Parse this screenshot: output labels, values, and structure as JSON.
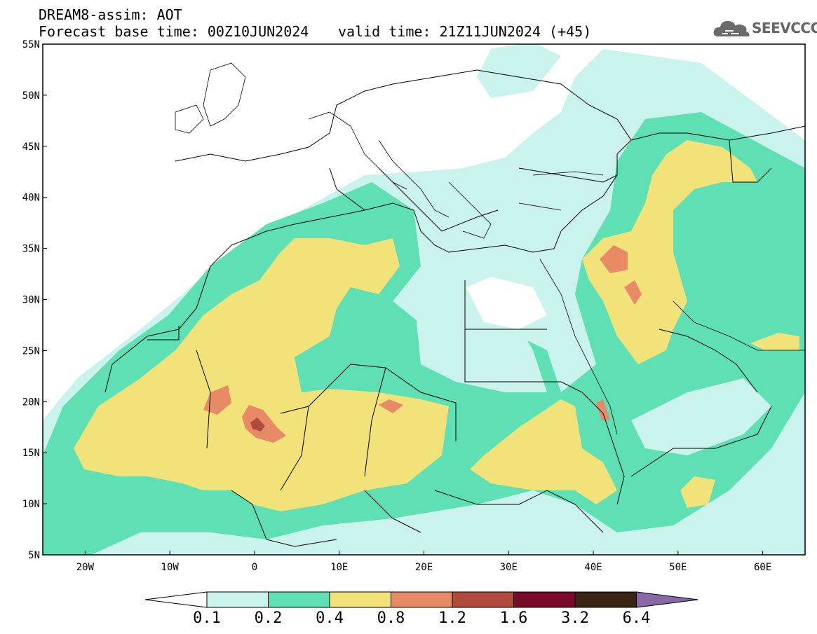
{
  "header": {
    "line1": "DREAM8-assim: AOT",
    "line2_base": "Forecast base time: 00Z10JUN2024",
    "line2_valid": "valid time: 21Z11JUN2024 (+45)"
  },
  "logo": {
    "text": "SEEVCCC",
    "icon": "cloud-icon"
  },
  "map": {
    "lat_labels": [
      "55N",
      "50N",
      "45N",
      "40N",
      "35N",
      "30N",
      "25N",
      "20N",
      "15N",
      "10N",
      "5N"
    ],
    "lon_labels": [
      "20W",
      "10W",
      "0",
      "10E",
      "20E",
      "30E",
      "40E",
      "50E",
      "60E"
    ],
    "lon_range": [
      -25,
      65
    ],
    "lat_range": [
      5,
      55
    ]
  },
  "colorbar": {
    "labels": [
      "0.1",
      "0.2",
      "0.4",
      "0.8",
      "1.2",
      "1.6",
      "3.2",
      "6.4"
    ],
    "colors": [
      "#c9f3ec",
      "#5ee0b4",
      "#f2e27a",
      "#e88a66",
      "#b04a3c",
      "#7a0a2a",
      "#3a2414",
      "#8a68a8"
    ]
  }
}
